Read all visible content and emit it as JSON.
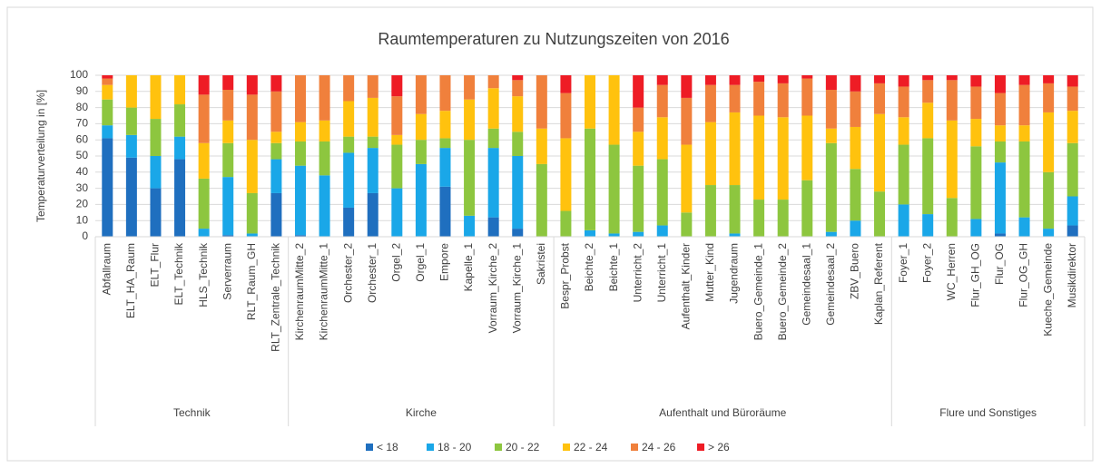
{
  "chart_data": {
    "type": "stacked_bar",
    "title": "Raumtemperaturen zu Nutzungszeiten von 2016",
    "y_label": "Temperaturverteilung in [%]",
    "ylim": [
      0,
      100
    ],
    "yticks": [
      0,
      10,
      20,
      30,
      40,
      50,
      60,
      70,
      80,
      90,
      100
    ],
    "grid": true,
    "legend": "bottom",
    "groups": [
      {
        "name": "Technik",
        "categories": [
          "Abfallraum",
          "ELT_HA_Raum",
          "ELT_Flur",
          "ELT_Technik",
          "HLS_Technik",
          "Serverraum",
          "RLT_Raum_GH",
          "RLT_Zentrale_Technik"
        ]
      },
      {
        "name": "Kirche",
        "categories": [
          "KirchenraumMitte_2",
          "KirchenraumMitte_1",
          "Orchester_2",
          "Orchester_1",
          "Orgel_2",
          "Orgel_1",
          "Empore",
          "Kapelle_1",
          "Vorraum_Kirche_2",
          "Vorraum_Kirche_1",
          "Sakristei"
        ]
      },
      {
        "name": "Aufenthalt und Büroräume",
        "categories": [
          "Bespr_Probst",
          "Beichte_2",
          "Beichte_1",
          "Unterricht_2",
          "Unterricht_1",
          "Aufenthalt_Kinder",
          "Mutter_Kind",
          "Jugendraum",
          "Buero_Gemeinde_1",
          "Buero_Gemeinde_2",
          "Gemeindesaal_1",
          "Gemeindesaal_2",
          "ZBV_Buero",
          "Kaplan_Referent"
        ]
      },
      {
        "name": "Flure und Sonstiges",
        "categories": [
          "Foyer_1",
          "Foyer_2",
          "WC_Herren",
          "Flur_GH_OG",
          "Flur_OG",
          "Flur_OG_GH",
          "Kueche_Gemeinde",
          "Musikdirektor"
        ]
      }
    ],
    "series": [
      {
        "name": "< 18",
        "color": "#1f6fbf",
        "values": [
          61,
          49,
          30,
          48,
          0,
          1,
          0,
          27,
          1,
          0,
          18,
          27,
          0,
          0,
          31,
          0,
          12,
          5,
          0,
          0,
          0,
          0,
          0,
          0,
          0,
          0,
          0,
          0,
          0,
          0,
          0,
          0,
          0,
          0,
          0,
          0,
          0,
          2,
          0,
          0,
          7
        ]
      },
      {
        "name": "18 - 20",
        "color": "#1aa7e8",
        "values": [
          8,
          14,
          20,
          14,
          5,
          36,
          2,
          21,
          43,
          38,
          34,
          28,
          30,
          45,
          24,
          13,
          43,
          45,
          0,
          0,
          4,
          2,
          3,
          7,
          0,
          0,
          2,
          0,
          0,
          0,
          3,
          10,
          0,
          20,
          14,
          0,
          11,
          44,
          12,
          5,
          18
        ]
      },
      {
        "name": "20 - 22",
        "color": "#8dc63f",
        "values": [
          16,
          17,
          23,
          20,
          31,
          21,
          25,
          10,
          15,
          21,
          10,
          7,
          27,
          15,
          6,
          47,
          12,
          15,
          45,
          16,
          63,
          55,
          41,
          41,
          15,
          32,
          30,
          23,
          23,
          35,
          55,
          32,
          28,
          37,
          47,
          24,
          45,
          13,
          47,
          35,
          33
        ]
      },
      {
        "name": "22 - 24",
        "color": "#ffc20e",
        "values": [
          9,
          20,
          27,
          18,
          22,
          14,
          33,
          7,
          12,
          13,
          22,
          24,
          6,
          16,
          17,
          25,
          25,
          22,
          22,
          45,
          33,
          43,
          21,
          26,
          42,
          39,
          45,
          52,
          51,
          40,
          9,
          26,
          48,
          17,
          22,
          48,
          17,
          10,
          10,
          37,
          20
        ]
      },
      {
        "name": "24 - 26",
        "color": "#f0803c",
        "values": [
          4,
          0,
          0,
          0,
          30,
          19,
          28,
          25,
          29,
          28,
          16,
          14,
          24,
          24,
          22,
          15,
          8,
          10,
          33,
          28,
          0,
          0,
          15,
          20,
          29,
          23,
          17,
          21,
          21,
          23,
          24,
          22,
          19,
          19,
          14,
          25,
          20,
          20,
          25,
          18,
          15
        ]
      },
      {
        "name": "> 26",
        "color": "#ee1c25",
        "values": [
          2,
          0,
          0,
          0,
          12,
          9,
          12,
          10,
          0,
          0,
          0,
          0,
          13,
          0,
          0,
          0,
          0,
          3,
          0,
          11,
          0,
          0,
          20,
          6,
          14,
          6,
          6,
          4,
          5,
          2,
          9,
          10,
          5,
          7,
          3,
          3,
          7,
          11,
          6,
          5,
          7
        ]
      }
    ]
  }
}
